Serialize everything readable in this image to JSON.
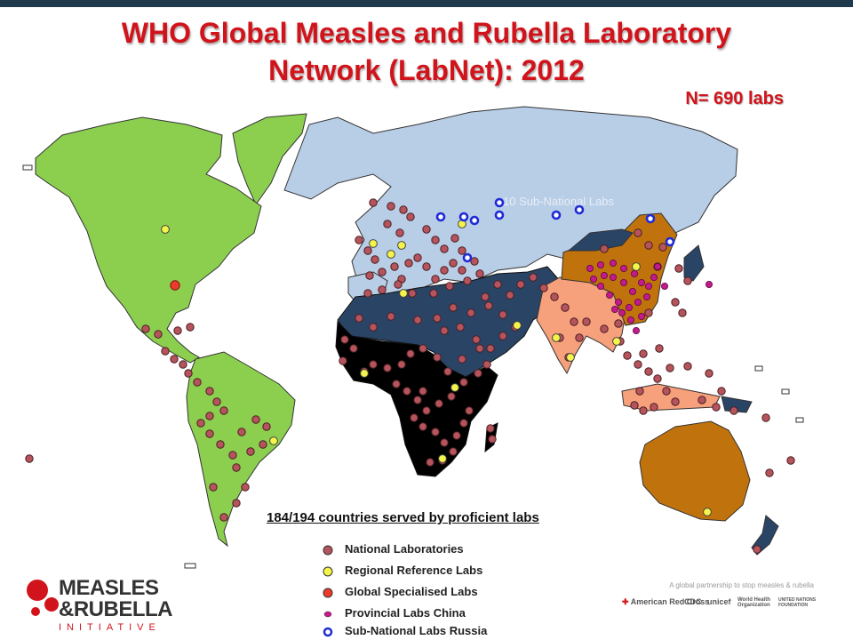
{
  "title": {
    "line1": "WHO Global Measles and Rubella Laboratory",
    "line2": "Network (LabNet): 2012"
  },
  "lab_count": "N= 690 labs",
  "map_annotation": "10 Sub-National Labs",
  "countries_served": "184/194 countries served by proficient labs",
  "legend": [
    {
      "label": "National Laboratories",
      "marker": "dot",
      "color": "#b5545c"
    },
    {
      "label": "Regional Reference Labs",
      "marker": "dot",
      "color": "#f4f44a"
    },
    {
      "label": "Global Specialised Labs",
      "marker": "dot",
      "color": "#ee3a2a"
    },
    {
      "label": "Provincial Labs China",
      "marker": "small-dot",
      "color": "#c41a8c"
    },
    {
      "label": "Sub-National Labs Russia",
      "marker": "ring",
      "color": "#1f2bd6"
    }
  ],
  "regions": [
    {
      "name": "Americas",
      "color": "#8ccf4f"
    },
    {
      "name": "Europe",
      "color": "#b8cde6"
    },
    {
      "name": "Eastern Mediterranean",
      "color": "#2a4466"
    },
    {
      "name": "Africa",
      "color": "#000000"
    },
    {
      "name": "South-East Asia",
      "color": "#f6a07c"
    },
    {
      "name": "Western Pacific",
      "color": "#c0730c"
    }
  ],
  "logo": {
    "line1": "MEASLES",
    "line2": "&RUBELLA",
    "line3": "INITIATIVE"
  },
  "partners_note": "A global partnership to stop measles & rubella",
  "partners": [
    "American Red Cross",
    "CDC",
    "unicef",
    "World Health Organization",
    "UNITED NATIONS FOUNDATION"
  ]
}
